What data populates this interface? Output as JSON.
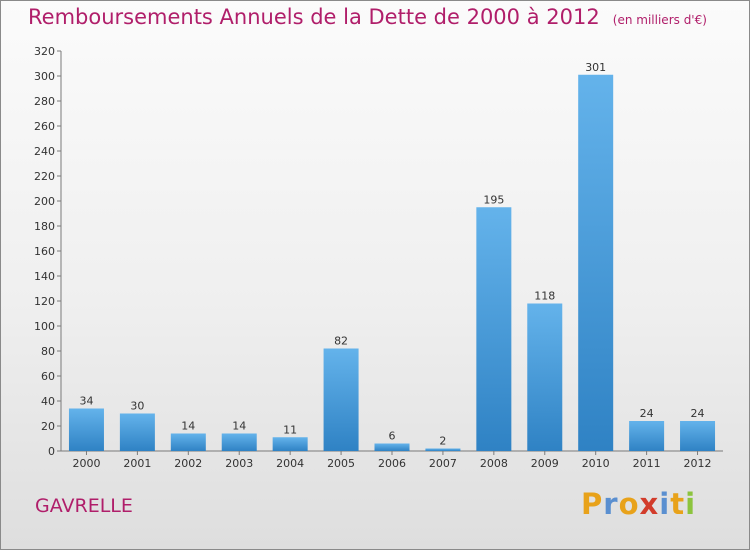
{
  "header": {
    "title": "Remboursements Annuels de la Dette de 2000 à 2012",
    "unit": "(en milliers d'€)"
  },
  "footer": {
    "city": "GAVRELLE",
    "logo_text": "Proxiti"
  },
  "colors": {
    "title": "#b01e6a",
    "bar_light": "#64b3eb",
    "bar_dark": "#2f82c4",
    "logo_letters": [
      "#e8a21a",
      "#5a8fd0",
      "#e8a21a",
      "#d23c2b",
      "#5a8fd0",
      "#e8a21a",
      "#8cc43e"
    ]
  },
  "chart_data": {
    "type": "bar",
    "title": "Remboursements Annuels de la Dette de 2000 à 2012",
    "subtitle": "(en milliers d'€)",
    "categories": [
      "2000",
      "2001",
      "2002",
      "2003",
      "2004",
      "2005",
      "2006",
      "2007",
      "2008",
      "2009",
      "2010",
      "2011",
      "2012"
    ],
    "values": [
      34,
      30,
      14,
      14,
      11,
      82,
      6,
      2,
      195,
      118,
      301,
      24,
      24
    ],
    "ylim": [
      0,
      320
    ],
    "yticks": [
      0,
      20,
      40,
      60,
      80,
      100,
      120,
      140,
      160,
      180,
      200,
      220,
      240,
      260,
      280,
      300,
      320
    ],
    "grid": false,
    "legend": "none"
  }
}
